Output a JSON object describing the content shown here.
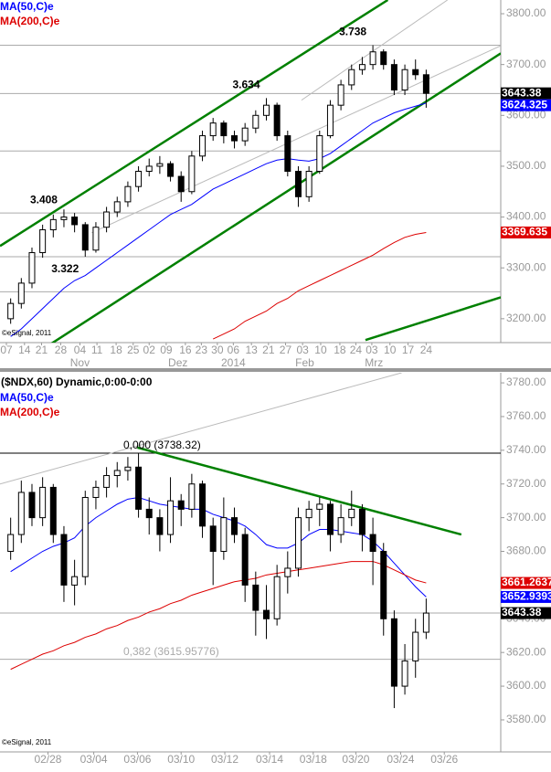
{
  "chart_data": [
    {
      "type": "candlestick",
      "source": "©eSignal, 2011",
      "x": [
        1,
        2,
        3,
        4,
        5,
        6,
        7,
        8,
        9,
        10,
        11,
        12,
        13,
        14,
        15,
        16,
        17,
        18,
        19,
        20,
        21,
        22,
        23,
        24,
        25,
        26,
        27,
        28,
        29,
        30,
        31,
        32,
        33,
        34,
        35,
        36,
        37,
        38,
        39,
        40
      ],
      "candles": {
        "color": "#000000",
        "open": [
          3200,
          3230,
          3270,
          3330,
          3375,
          3395,
          3400,
          3385,
          3335,
          3380,
          3410,
          3430,
          3460,
          3490,
          3500,
          3505,
          3480,
          3450,
          3520,
          3560,
          3585,
          3560,
          3550,
          3575,
          3600,
          3620,
          3560,
          3490,
          3440,
          3490,
          3560,
          3620,
          3660,
          3690,
          3700,
          3725,
          3700,
          3650,
          3690,
          3680
        ],
        "high": [
          3240,
          3280,
          3340,
          3385,
          3405,
          3415,
          3408,
          3390,
          3390,
          3420,
          3440,
          3470,
          3500,
          3515,
          3520,
          3510,
          3490,
          3530,
          3570,
          3595,
          3590,
          3570,
          3585,
          3610,
          3634,
          3625,
          3570,
          3500,
          3500,
          3570,
          3630,
          3670,
          3700,
          3715,
          3738,
          3730,
          3710,
          3700,
          3710,
          3690
        ],
        "low": [
          3190,
          3220,
          3260,
          3320,
          3360,
          3380,
          3370,
          3322,
          3330,
          3370,
          3400,
          3420,
          3450,
          3480,
          3485,
          3470,
          3430,
          3445,
          3510,
          3550,
          3545,
          3535,
          3540,
          3565,
          3590,
          3550,
          3480,
          3420,
          3430,
          3485,
          3555,
          3610,
          3650,
          3680,
          3690,
          3690,
          3640,
          3640,
          3670,
          3615
        ],
        "close": [
          3230,
          3270,
          3330,
          3375,
          3395,
          3400,
          3385,
          3335,
          3380,
          3410,
          3430,
          3460,
          3490,
          3500,
          3505,
          3480,
          3450,
          3520,
          3560,
          3585,
          3560,
          3550,
          3575,
          3600,
          3620,
          3560,
          3490,
          3440,
          3490,
          3560,
          3620,
          3660,
          3690,
          3700,
          3725,
          3700,
          3650,
          3690,
          3680,
          3643.38
        ]
      },
      "series": [
        {
          "name": "MA(50,C)e",
          "color": "#0000ff",
          "values": [
            3165,
            3180,
            3200,
            3220,
            3240,
            3260,
            3275,
            3285,
            3300,
            3315,
            3330,
            3345,
            3360,
            3375,
            3390,
            3405,
            3415,
            3425,
            3440,
            3455,
            3465,
            3475,
            3485,
            3495,
            3505,
            3512,
            3515,
            3512,
            3510,
            3515,
            3525,
            3540,
            3555,
            3570,
            3585,
            3595,
            3605,
            3612,
            3618,
            3624.325
          ]
        },
        {
          "name": "MA(200,C)e",
          "color": "#dd0000",
          "values": [
            null,
            null,
            null,
            null,
            null,
            null,
            null,
            null,
            null,
            null,
            null,
            null,
            null,
            null,
            null,
            null,
            null,
            null,
            null,
            3160,
            3170,
            3180,
            3195,
            3205,
            3215,
            3230,
            3240,
            3255,
            3265,
            3275,
            3285,
            3295,
            3305,
            3315,
            3325,
            3338,
            3350,
            3360,
            3366,
            3369.635
          ]
        }
      ],
      "trendlines": [
        {
          "color": "#008000",
          "x": [
            0,
            36.4
          ],
          "values": [
            3343,
            3827
          ]
        },
        {
          "color": "#008000",
          "x": [
            4.3,
            47
          ],
          "values": [
            3144,
            3722
          ]
        },
        {
          "color": "#008000",
          "x": [
            34.3,
            47
          ],
          "values": [
            3158,
            3242
          ]
        },
        {
          "color": "#bbbbbb",
          "x": [
            8.6,
            47
          ],
          "values": [
            3369,
            3737
          ]
        },
        {
          "color": "#bbbbbb",
          "x": [
            28.3,
            42
          ],
          "values": [
            3630,
            3827
          ]
        }
      ],
      "hlines": [
        {
          "value": 3738,
          "color": "#aaaaaa"
        },
        {
          "value": 3643,
          "color": "#aaaaaa"
        },
        {
          "value": 3530,
          "color": "#aaaaaa"
        },
        {
          "value": 3408,
          "color": "#aaaaaa"
        },
        {
          "value": 3322,
          "color": "#aaaaaa"
        },
        {
          "value": 3253,
          "color": "#aaaaaa"
        }
      ],
      "annotations": [
        {
          "x": 35,
          "value": 3738,
          "label": "3.738"
        },
        {
          "x": 25,
          "value": 3634,
          "label": "3.634"
        },
        {
          "x": 6,
          "value": 3408,
          "label": "3.408"
        },
        {
          "x": 8,
          "value": 3322,
          "label": "3.322"
        }
      ],
      "price_labels": [
        {
          "value": 3643.38,
          "label": "3643.38",
          "color": "#000000"
        },
        {
          "value": 3624.325,
          "label": "3624.325",
          "color": "#0000ff"
        },
        {
          "value": 3369.635,
          "label": "3369.635",
          "color": "#dd0000"
        }
      ],
      "xlim": [
        0,
        47
      ],
      "ylim": [
        3153,
        3827
      ],
      "xticks": [
        {
          "value": 0.6,
          "label": "07"
        },
        {
          "value": 2.3,
          "label": "14"
        },
        {
          "value": 3.9,
          "label": "21"
        },
        {
          "value": 5.7,
          "label": "28"
        },
        {
          "value": 7.5,
          "label": "04"
        },
        {
          "value": 9.1,
          "label": "11"
        },
        {
          "value": 10.9,
          "label": "18"
        },
        {
          "value": 12.5,
          "label": "25"
        },
        {
          "value": 14,
          "label": "02"
        },
        {
          "value": 15.6,
          "label": "09"
        },
        {
          "value": 17.4,
          "label": "16"
        },
        {
          "value": 18.9,
          "label": "23"
        },
        {
          "value": 20.4,
          "label": "30"
        },
        {
          "value": 21.9,
          "label": "06"
        },
        {
          "value": 23.6,
          "label": "13"
        },
        {
          "value": 25.2,
          "label": "21"
        },
        {
          "value": 26.8,
          "label": "27"
        },
        {
          "value": 28.4,
          "label": "03"
        },
        {
          "value": 30.1,
          "label": "10"
        },
        {
          "value": 31.9,
          "label": "18"
        },
        {
          "value": 33.4,
          "label": "24"
        },
        {
          "value": 34.9,
          "label": "03"
        },
        {
          "value": 36.6,
          "label": "10"
        },
        {
          "value": 38.3,
          "label": "17"
        },
        {
          "value": 40,
          "label": "24"
        }
      ],
      "xticks2": [
        {
          "value": 7.5,
          "label": "Nov"
        },
        {
          "value": 16.7,
          "label": "Dez"
        },
        {
          "value": 21.9,
          "label": "2014"
        },
        {
          "value": 28.6,
          "label": "Feb"
        },
        {
          "value": 35.1,
          "label": "Mrz"
        }
      ],
      "yticks": [
        {
          "value": 3200,
          "label": "3200.00"
        },
        {
          "value": 3300,
          "label": "3300.00"
        },
        {
          "value": 3400,
          "label": "3400.00"
        },
        {
          "value": 3500,
          "label": "3500.00"
        },
        {
          "value": 3600,
          "label": "3600.00"
        },
        {
          "value": 3700,
          "label": "3700.00"
        },
        {
          "value": 3800,
          "label": "3800.00"
        }
      ]
    },
    {
      "type": "candlestick",
      "title": "($NDX,60) Dynamic,0:00-0:00",
      "source": "©eSignal, 2011",
      "x": [
        1,
        2,
        3,
        4,
        5,
        6,
        7,
        8,
        9,
        10,
        11,
        12,
        13,
        14,
        15,
        16,
        17,
        18,
        19,
        20,
        21,
        22,
        23,
        24,
        25,
        26,
        27,
        28,
        29,
        30,
        31,
        32,
        33,
        34,
        35,
        36,
        37,
        38,
        39,
        40
      ],
      "candles": {
        "color": "#000000",
        "open": [
          3680,
          3690,
          3715,
          3700,
          3718,
          3690,
          3660,
          3665,
          3712,
          3718,
          3725,
          3728,
          3730,
          3705,
          3700,
          3690,
          3710,
          3705,
          3720,
          3695,
          3680,
          3700,
          3690,
          3660,
          3645,
          3640,
          3665,
          3670,
          3700,
          3705,
          3708,
          3690,
          3700,
          3705,
          3690,
          3680,
          3640,
          3600,
          3615,
          3632
        ],
        "high": [
          3700,
          3722,
          3720,
          3724,
          3720,
          3695,
          3675,
          3716,
          3722,
          3730,
          3733,
          3736,
          3738.32,
          3712,
          3705,
          3724,
          3714,
          3726,
          3722,
          3700,
          3712,
          3706,
          3694,
          3668,
          3660,
          3672,
          3680,
          3706,
          3710,
          3712,
          3710,
          3708,
          3716,
          3708,
          3700,
          3685,
          3645,
          3625,
          3640,
          3652
        ],
        "low": [
          3675,
          3685,
          3695,
          3695,
          3685,
          3650,
          3648,
          3660,
          3705,
          3712,
          3718,
          3722,
          3700,
          3690,
          3680,
          3685,
          3695,
          3700,
          3688,
          3660,
          3675,
          3685,
          3650,
          3630,
          3628,
          3636,
          3655,
          3665,
          3692,
          3695,
          3680,
          3685,
          3695,
          3680,
          3660,
          3630,
          3587,
          3595,
          3605,
          3628
        ],
        "close": [
          3690,
          3715,
          3700,
          3718,
          3690,
          3660,
          3665,
          3712,
          3718,
          3725,
          3728,
          3730,
          3705,
          3700,
          3690,
          3710,
          3705,
          3720,
          3695,
          3680,
          3700,
          3690,
          3660,
          3645,
          3640,
          3665,
          3670,
          3700,
          3705,
          3708,
          3690,
          3700,
          3705,
          3690,
          3680,
          3640,
          3600,
          3615,
          3632,
          3643.38
        ]
      },
      "series": [
        {
          "name": "MA(50,C)e",
          "color": "#0000ff",
          "values": [
            3668,
            3672,
            3676,
            3680,
            3683,
            3685,
            3688,
            3695,
            3700,
            3704,
            3708,
            3711,
            3712,
            3710,
            3708,
            3707,
            3706,
            3705,
            3705,
            3702,
            3700,
            3698,
            3695,
            3690,
            3684,
            3682,
            3682,
            3685,
            3690,
            3693,
            3693,
            3692,
            3691,
            3690,
            3686,
            3680,
            3673,
            3666,
            3659,
            3652.9393
          ]
        },
        {
          "name": "MA(200,C)e",
          "color": "#dd0000",
          "values": [
            3610,
            3613,
            3616,
            3619,
            3621,
            3624,
            3626,
            3629,
            3631,
            3634,
            3636,
            3639,
            3641,
            3644,
            3646,
            3649,
            3651,
            3654,
            3656,
            3658,
            3660,
            3662,
            3663,
            3664,
            3666,
            3667,
            3668,
            3669,
            3670,
            3671,
            3672,
            3673,
            3674,
            3674,
            3674,
            3672,
            3669,
            3666,
            3663,
            3661.2637
          ]
        }
      ],
      "trendlines": [
        {
          "color": "#008000",
          "x": [
            12.9,
            43.3
          ],
          "values": [
            3741.6,
            3690
          ]
        },
        {
          "color": "#bbbbbb",
          "x": [
            0,
            37.7
          ],
          "values": [
            3720,
            3786
          ]
        }
      ],
      "hlines": [
        {
          "value": 3643.38,
          "color": "#aaaaaa"
        }
      ],
      "fib": [
        {
          "value": 3738.32,
          "label": "0,000 (3738.32)",
          "color": "#000000"
        },
        {
          "value": 3615.95776,
          "label": "0,382 (3615.95776)",
          "color": "#aaaaaa"
        }
      ],
      "price_labels": [
        {
          "value": 3661.2637,
          "label": "3661.2637",
          "color": "#dd0000"
        },
        {
          "value": 3652.9393,
          "label": "3652.9393",
          "color": "#0000ff"
        },
        {
          "value": 3643.38,
          "label": "3643.38",
          "color": "#000000"
        }
      ],
      "xlim": [
        0,
        47
      ],
      "ylim": [
        3561,
        3786
      ],
      "xticks": [
        {
          "value": 4.5,
          "label": "02/28"
        },
        {
          "value": 8.8,
          "label": "03/04"
        },
        {
          "value": 12.9,
          "label": "03/06"
        },
        {
          "value": 17,
          "label": "03/10"
        },
        {
          "value": 21.1,
          "label": "03/12"
        },
        {
          "value": 25.3,
          "label": "03/14"
        },
        {
          "value": 29.4,
          "label": "03/18"
        },
        {
          "value": 33.4,
          "label": "03/20"
        },
        {
          "value": 37.6,
          "label": "03/24"
        },
        {
          "value": 41.7,
          "label": "03/26"
        }
      ],
      "yticks": [
        {
          "value": 3580,
          "label": "3580.00"
        },
        {
          "value": 3600,
          "label": "3600.00"
        },
        {
          "value": 3620,
          "label": "3620.00"
        },
        {
          "value": 3640,
          "label": "3640.00"
        },
        {
          "value": 3660,
          "label": "3660.00"
        },
        {
          "value": 3680,
          "label": "3680.00"
        },
        {
          "value": 3700,
          "label": "3700.00"
        },
        {
          "value": 3720,
          "label": "3720.00"
        },
        {
          "value": 3740,
          "label": "3740.00"
        },
        {
          "value": 3760,
          "label": "3760.00"
        },
        {
          "value": 3780,
          "label": "3780.00"
        }
      ]
    }
  ]
}
